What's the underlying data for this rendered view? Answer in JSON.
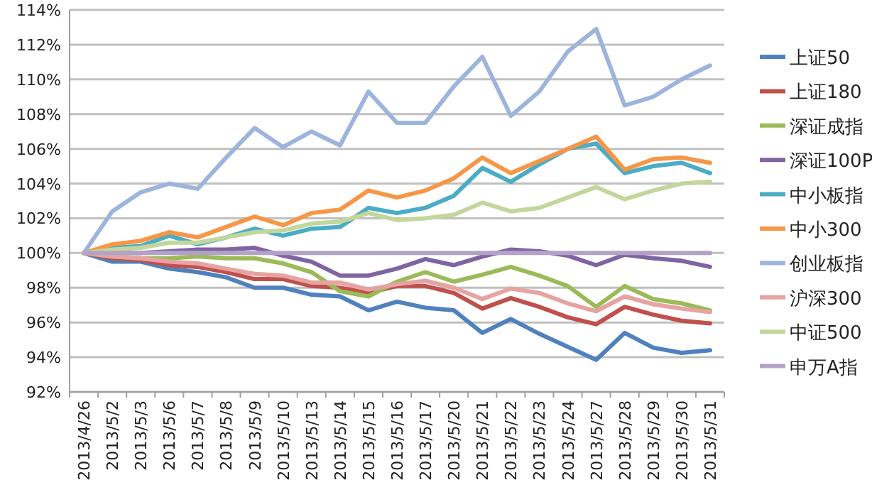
{
  "chart_data": {
    "type": "line",
    "categories": [
      "2013/4/26",
      "2013/5/2",
      "2013/5/3",
      "2013/5/6",
      "2013/5/7",
      "2013/5/8",
      "2013/5/9",
      "2013/5/10",
      "2013/5/13",
      "2013/5/14",
      "2013/5/15",
      "2013/5/16",
      "2013/5/17",
      "2013/5/20",
      "2013/5/21",
      "2013/5/22",
      "2013/5/23",
      "2013/5/24",
      "2013/5/27",
      "2013/5/28",
      "2013/5/29",
      "2013/5/30",
      "2013/5/31"
    ],
    "series": [
      {
        "name": "上证50",
        "color": "#4f81bd",
        "values": [
          100,
          99.5,
          99.5,
          99.1,
          98.9,
          98.6,
          98.0,
          98.0,
          97.6,
          97.5,
          96.7,
          97.2,
          96.85,
          96.7,
          95.4,
          96.2,
          95.35,
          94.6,
          93.85,
          95.4,
          94.55,
          94.25,
          94.4
        ]
      },
      {
        "name": "上证180",
        "color": "#c0504d",
        "values": [
          100,
          99.7,
          99.6,
          99.3,
          99.2,
          98.9,
          98.5,
          98.5,
          98.1,
          98.0,
          97.7,
          98.1,
          98.1,
          97.7,
          96.8,
          97.4,
          96.9,
          96.3,
          95.9,
          96.9,
          96.45,
          96.1,
          95.95
        ]
      },
      {
        "name": "深证成指",
        "color": "#9bbb59",
        "values": [
          100,
          99.8,
          99.7,
          99.7,
          99.8,
          99.7,
          99.7,
          99.4,
          98.9,
          97.8,
          97.5,
          98.35,
          98.9,
          98.35,
          98.75,
          99.2,
          98.7,
          98.1,
          96.9,
          98.1,
          97.35,
          97.1,
          96.7
        ]
      },
      {
        "name": "深证100P",
        "color": "#8064a2",
        "values": [
          100,
          100.0,
          100.0,
          100.1,
          100.2,
          100.2,
          100.3,
          99.85,
          99.5,
          98.7,
          98.7,
          99.1,
          99.65,
          99.3,
          99.8,
          100.2,
          100.1,
          99.85,
          99.3,
          99.9,
          99.7,
          99.55,
          99.2
        ]
      },
      {
        "name": "中小板指",
        "color": "#4bacc6",
        "values": [
          100,
          100.3,
          100.4,
          101.0,
          100.5,
          100.9,
          101.4,
          101.0,
          101.4,
          101.5,
          102.6,
          102.3,
          102.6,
          103.3,
          104.9,
          104.1,
          105.1,
          106.0,
          106.3,
          104.6,
          105.0,
          105.2,
          104.6
        ]
      },
      {
        "name": "中小300",
        "color": "#f79646",
        "values": [
          100,
          100.5,
          100.7,
          101.2,
          100.9,
          101.5,
          102.1,
          101.6,
          102.3,
          102.5,
          103.6,
          103.2,
          103.6,
          104.3,
          105.5,
          104.6,
          105.3,
          106.0,
          106.7,
          104.8,
          105.4,
          105.5,
          105.2
        ]
      },
      {
        "name": "创业板指",
        "color": "#9db4dd",
        "values": [
          100,
          102.4,
          103.5,
          104.0,
          103.7,
          105.5,
          107.2,
          106.1,
          107.0,
          106.2,
          109.3,
          107.5,
          107.5,
          109.6,
          111.3,
          107.9,
          109.3,
          111.6,
          112.9,
          108.5,
          109.0,
          110.0,
          110.8
        ]
      },
      {
        "name": "沪深300",
        "color": "#e6a3a2",
        "values": [
          100,
          99.8,
          99.7,
          99.5,
          99.4,
          99.1,
          98.8,
          98.7,
          98.3,
          98.3,
          97.9,
          98.2,
          98.4,
          98.0,
          97.35,
          97.95,
          97.7,
          97.1,
          96.65,
          97.5,
          97.05,
          96.8,
          96.6
        ]
      },
      {
        "name": "中证500",
        "color": "#c3d69b",
        "values": [
          100,
          100.2,
          100.3,
          100.6,
          100.6,
          100.9,
          101.2,
          101.3,
          101.7,
          101.8,
          102.3,
          101.9,
          102.0,
          102.2,
          102.9,
          102.4,
          102.6,
          103.2,
          103.8,
          103.1,
          103.6,
          104.0,
          104.1
        ]
      },
      {
        "name": "申万A指",
        "color": "#b3a2c7",
        "values": [
          100,
          100,
          100,
          100,
          100,
          100,
          100,
          100,
          100,
          100,
          100,
          100,
          100,
          100,
          100,
          100,
          100,
          100,
          100,
          100,
          100,
          100,
          100
        ]
      }
    ],
    "ylim": [
      92,
      114
    ],
    "yticks": [
      {
        "value": 92,
        "label": "92%"
      },
      {
        "value": 94,
        "label": "94%"
      },
      {
        "value": 96,
        "label": "96%"
      },
      {
        "value": 98,
        "label": "98%"
      },
      {
        "value": 100,
        "label": "100%"
      },
      {
        "value": 102,
        "label": "102%"
      },
      {
        "value": 104,
        "label": "104%"
      },
      {
        "value": 106,
        "label": "106%"
      },
      {
        "value": 108,
        "label": "108%"
      },
      {
        "value": 110,
        "label": "110%"
      },
      {
        "value": 112,
        "label": "112%"
      },
      {
        "value": 114,
        "label": "114%"
      }
    ],
    "grid": "y",
    "legend": "right",
    "marker": "none",
    "line_style": "solid"
  }
}
